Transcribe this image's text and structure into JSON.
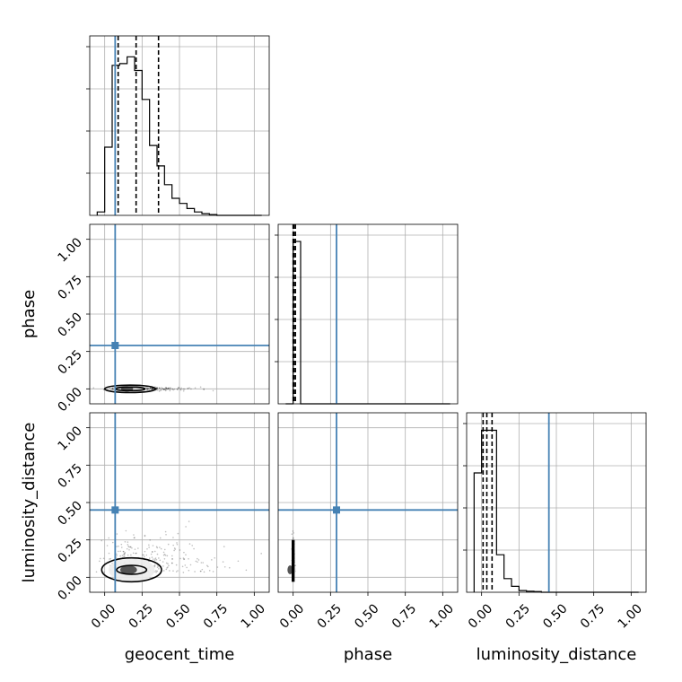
{
  "chart_data": {
    "type": "corner",
    "params": [
      {
        "name": "geocent_time",
        "label": "geocent_time",
        "injection": 0.07
      },
      {
        "name": "phase",
        "label": "phase",
        "injection": 0.29
      },
      {
        "name": "luminosity_distance",
        "label": "luminosity_distance",
        "injection": 0.45
      }
    ],
    "axis_range": [
      -0.1,
      1.1
    ],
    "tick_labels": [
      "0.00",
      "0.25",
      "0.50",
      "0.75",
      "1.00"
    ],
    "tick_values": [
      0.0,
      0.25,
      0.5,
      0.75,
      1.0
    ],
    "grid": true,
    "injection_color": "#4682b4",
    "histograms": [
      {
        "param": "geocent_time",
        "bin_edges": [
          -0.05,
          0.0,
          0.05,
          0.1,
          0.15,
          0.2,
          0.25,
          0.3,
          0.35,
          0.4,
          0.45,
          0.5,
          0.55,
          0.6,
          0.65,
          0.7,
          0.75,
          0.8,
          0.85,
          0.9,
          0.95,
          1.0,
          1.05
        ],
        "counts": [
          0.02,
          0.4,
          0.88,
          0.89,
          0.93,
          0.85,
          0.68,
          0.41,
          0.29,
          0.18,
          0.1,
          0.07,
          0.04,
          0.02,
          0.01,
          0.005,
          0,
          0,
          0,
          0,
          0,
          0
        ],
        "quantiles": [
          0.09,
          0.21,
          0.36
        ],
        "ymax": 1.0
      },
      {
        "param": "phase",
        "bin_edges": [
          -0.05,
          0.0,
          0.05,
          0.1,
          0.15,
          0.2,
          0.25,
          0.3,
          0.35,
          0.4,
          0.45,
          0.5,
          0.55,
          0.6,
          0.65,
          0.7,
          0.75,
          0.8,
          0.85,
          0.9,
          0.95,
          1.0,
          1.05
        ],
        "counts": [
          0,
          1.0,
          0,
          0,
          0,
          0,
          0,
          0,
          0,
          0,
          0,
          0,
          0,
          0,
          0,
          0,
          0,
          0,
          0,
          0,
          0,
          0
        ],
        "quantiles": [
          0.0,
          0.005,
          0.015
        ],
        "ymax": 1.05
      },
      {
        "param": "luminosity_distance",
        "bin_edges": [
          -0.05,
          0.0,
          0.05,
          0.1,
          0.15,
          0.2,
          0.25,
          0.3,
          0.35,
          0.4,
          0.45,
          0.5,
          0.55,
          0.6,
          0.65,
          0.7,
          0.75,
          0.8,
          0.85,
          0.9,
          0.95,
          1.0,
          1.05
        ],
        "counts": [
          0.7,
          0.95,
          0.95,
          0.22,
          0.08,
          0.035,
          0.01,
          0.006,
          0.004,
          0,
          0,
          0,
          0,
          0,
          0,
          0,
          0,
          0,
          0,
          0,
          0,
          0
        ],
        "quantiles": [
          0.01,
          0.035,
          0.07
        ],
        "ymax": 1.0
      }
    ],
    "panels_2d": [
      {
        "x": "geocent_time",
        "y": "phase",
        "center": [
          0.17,
          0.0
        ],
        "spread": [
          0.2,
          0.03
        ],
        "contours": [
          [
            0.1,
            0.012
          ],
          [
            0.17,
            0.025
          ]
        ]
      },
      {
        "x": "geocent_time",
        "y": "luminosity_distance",
        "center": [
          0.18,
          0.05
        ],
        "spread": [
          0.28,
          0.25
        ],
        "contours": [
          [
            0.1,
            0.03
          ],
          [
            0.2,
            0.08
          ]
        ]
      },
      {
        "x": "phase",
        "y": "luminosity_distance",
        "center": [
          0.0,
          0.05
        ],
        "spread": [
          0.01,
          0.2
        ],
        "contours": []
      }
    ]
  }
}
